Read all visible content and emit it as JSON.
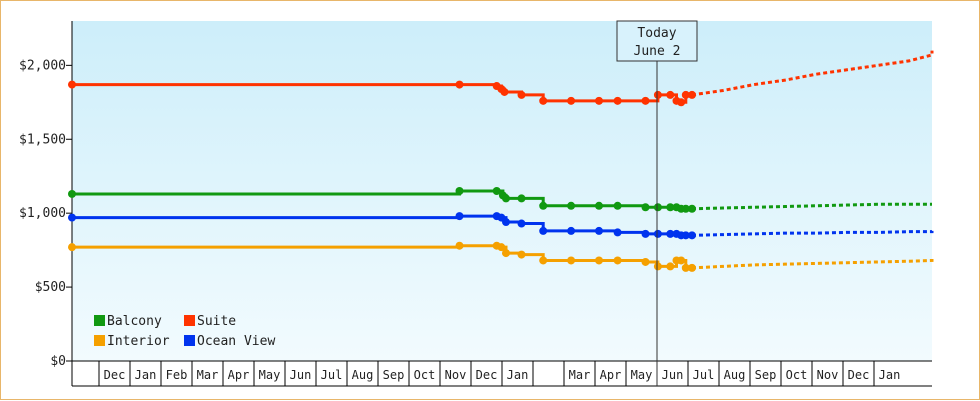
{
  "chart_data": {
    "type": "line",
    "today_label": [
      "Today",
      "June 2"
    ],
    "y_ticks": [
      "$0",
      "$500",
      "$1,000",
      "$1,500",
      "$2,000"
    ],
    "ylim": [
      0,
      2300
    ],
    "x_month_labels": [
      "",
      "Dec",
      "Jan",
      "Feb",
      "Mar",
      "Apr",
      "May",
      "Jun",
      "Jul",
      "Aug",
      "Sep",
      "Oct",
      "Nov",
      "Dec",
      "Jan",
      "",
      "Mar",
      "Apr",
      "May",
      "Jun",
      "Jul",
      "Aug",
      "Sep",
      "Oct",
      "Nov",
      "Dec",
      "Jan"
    ],
    "colors": {
      "Balcony": "#119911",
      "Suite": "#ff3300",
      "Interior": "#f5a000",
      "Ocean View": "#0033ee"
    },
    "legend": [
      {
        "name": "Balcony",
        "color": "#119911"
      },
      {
        "name": "Suite",
        "color": "#ff3300"
      },
      {
        "name": "Interior",
        "color": "#f5a000"
      },
      {
        "name": "Ocean View",
        "color": "#0033ee"
      }
    ],
    "legend_placement": "bottom-left",
    "grid": false,
    "series": [
      {
        "name": "Suite",
        "points": [
          [
            0,
            1870
          ],
          [
            12.5,
            1870
          ],
          [
            13.7,
            1860
          ],
          [
            13.85,
            1840
          ],
          [
            13.95,
            1820
          ],
          [
            14.5,
            1800
          ],
          [
            15.2,
            1760
          ],
          [
            16.1,
            1760
          ],
          [
            17.0,
            1760
          ],
          [
            17.6,
            1760
          ],
          [
            18.5,
            1760
          ],
          [
            18.9,
            1800
          ],
          [
            19.3,
            1800
          ],
          [
            19.5,
            1760
          ],
          [
            19.65,
            1750
          ],
          [
            19.8,
            1800
          ],
          [
            20.0,
            1800
          ]
        ],
        "forecast": [
          [
            20.0,
            1800
          ],
          [
            21,
            1830
          ],
          [
            22,
            1870
          ],
          [
            23,
            1900
          ],
          [
            24,
            1940
          ],
          [
            25,
            1970
          ],
          [
            26,
            2000
          ],
          [
            27,
            2030
          ],
          [
            28,
            2070
          ],
          [
            29,
            2100
          ]
        ]
      },
      {
        "name": "Balcony",
        "points": [
          [
            0,
            1130
          ],
          [
            12.5,
            1150
          ],
          [
            13.7,
            1150
          ],
          [
            13.9,
            1120
          ],
          [
            14.0,
            1100
          ],
          [
            14.5,
            1100
          ],
          [
            15.2,
            1050
          ],
          [
            16.1,
            1050
          ],
          [
            17.0,
            1050
          ],
          [
            17.6,
            1050
          ],
          [
            18.5,
            1040
          ],
          [
            18.9,
            1040
          ],
          [
            19.3,
            1040
          ],
          [
            19.5,
            1040
          ],
          [
            19.65,
            1030
          ],
          [
            19.8,
            1030
          ],
          [
            20.0,
            1030
          ]
        ],
        "forecast": [
          [
            20.0,
            1030
          ],
          [
            21,
            1035
          ],
          [
            22,
            1040
          ],
          [
            23,
            1045
          ],
          [
            24,
            1050
          ],
          [
            25,
            1055
          ],
          [
            26,
            1060
          ],
          [
            27,
            1060
          ],
          [
            28,
            1060
          ],
          [
            29,
            1060
          ]
        ]
      },
      {
        "name": "Ocean View",
        "points": [
          [
            0,
            970
          ],
          [
            12.5,
            980
          ],
          [
            13.7,
            980
          ],
          [
            13.85,
            970
          ],
          [
            14.0,
            940
          ],
          [
            14.5,
            930
          ],
          [
            15.2,
            880
          ],
          [
            16.1,
            880
          ],
          [
            17.0,
            880
          ],
          [
            17.6,
            870
          ],
          [
            18.5,
            860
          ],
          [
            18.9,
            860
          ],
          [
            19.3,
            860
          ],
          [
            19.5,
            860
          ],
          [
            19.65,
            850
          ],
          [
            19.8,
            850
          ],
          [
            20.0,
            850
          ]
        ],
        "forecast": [
          [
            20.0,
            850
          ],
          [
            21,
            855
          ],
          [
            22,
            860
          ],
          [
            23,
            865
          ],
          [
            24,
            865
          ],
          [
            25,
            870
          ],
          [
            26,
            870
          ],
          [
            27,
            875
          ],
          [
            28,
            875
          ],
          [
            29,
            880
          ]
        ]
      },
      {
        "name": "Interior",
        "points": [
          [
            0,
            770
          ],
          [
            12.5,
            780
          ],
          [
            13.7,
            780
          ],
          [
            13.85,
            770
          ],
          [
            14.0,
            730
          ],
          [
            14.5,
            720
          ],
          [
            15.2,
            680
          ],
          [
            16.1,
            680
          ],
          [
            17.0,
            680
          ],
          [
            17.6,
            680
          ],
          [
            18.5,
            670
          ],
          [
            18.9,
            640
          ],
          [
            19.3,
            640
          ],
          [
            19.5,
            680
          ],
          [
            19.65,
            680
          ],
          [
            19.8,
            630
          ],
          [
            20.0,
            630
          ]
        ],
        "forecast": [
          [
            20.0,
            630
          ],
          [
            21,
            640
          ],
          [
            22,
            650
          ],
          [
            23,
            655
          ],
          [
            24,
            660
          ],
          [
            25,
            665
          ],
          [
            26,
            670
          ],
          [
            27,
            675
          ],
          [
            28,
            680
          ],
          [
            29,
            690
          ]
        ]
      }
    ]
  }
}
